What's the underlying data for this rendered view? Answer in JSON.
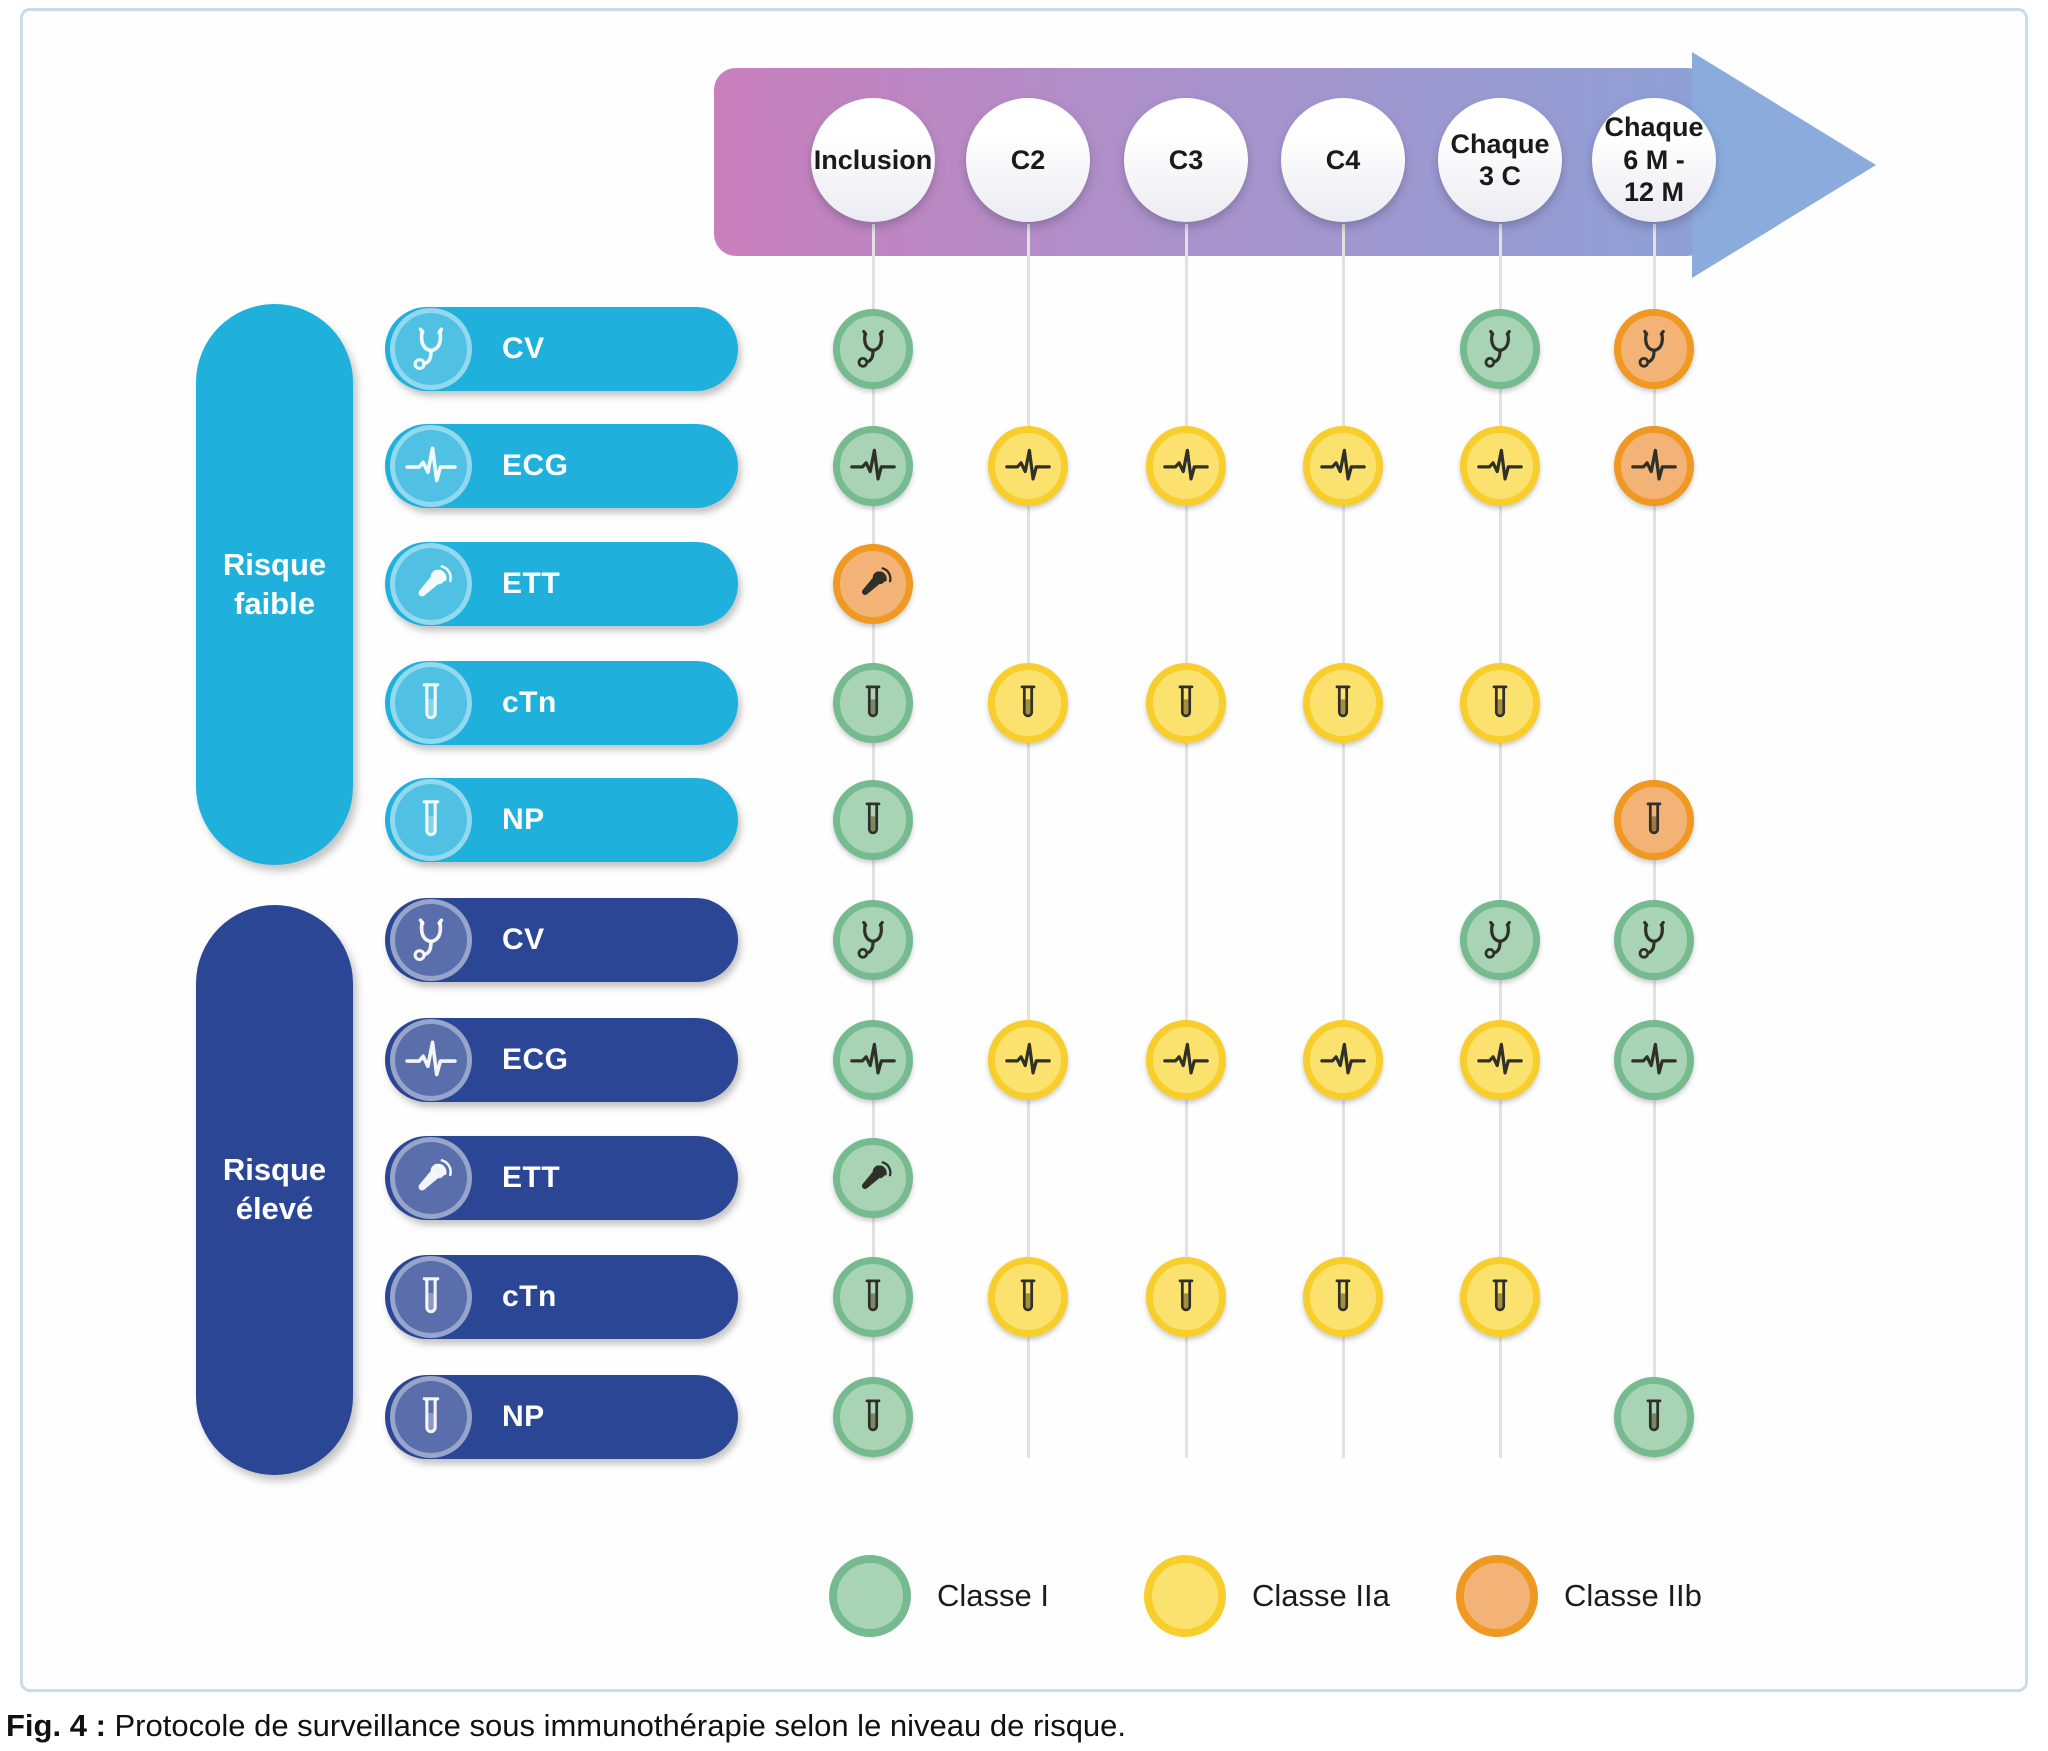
{
  "timeline": {
    "columns": [
      {
        "id": "inclusion",
        "label": "Inclusion"
      },
      {
        "id": "c2",
        "label": "C2"
      },
      {
        "id": "c3",
        "label": "C3"
      },
      {
        "id": "c4",
        "label": "C4"
      },
      {
        "id": "chaque-3c",
        "label": "Chaque\n3 C"
      },
      {
        "id": "chaque-6m-12m",
        "label": "Chaque\n6 M -\n12 M"
      }
    ],
    "arrow_gradient": [
      "#C97FBC",
      "#A893CC",
      "#8DA0D6"
    ],
    "arrow_head_color": "#8AABDC"
  },
  "risk_groups": [
    {
      "label": "Risque\nfaible",
      "color": "#1FB0DC",
      "rows": [
        {
          "label": "CV",
          "icon": "stethoscope",
          "cells": [
            "I",
            "",
            "",
            "",
            "I",
            "IIb"
          ]
        },
        {
          "label": "ECG",
          "icon": "ecg",
          "cells": [
            "I",
            "IIa",
            "IIa",
            "IIa",
            "IIa",
            "IIb"
          ]
        },
        {
          "label": "ETT",
          "icon": "ett",
          "cells": [
            "IIb",
            "",
            "",
            "",
            "",
            ""
          ]
        },
        {
          "label": "cTn",
          "icon": "tube",
          "cells": [
            "I",
            "IIa",
            "IIa",
            "IIa",
            "IIa",
            ""
          ]
        },
        {
          "label": "NP",
          "icon": "tube",
          "cells": [
            "I",
            "",
            "",
            "",
            "",
            "IIb"
          ]
        }
      ]
    },
    {
      "label": "Risque\nélevé",
      "color": "#2B4694",
      "rows": [
        {
          "label": "CV",
          "icon": "stethoscope",
          "cells": [
            "I",
            "",
            "",
            "",
            "I",
            "I"
          ]
        },
        {
          "label": "ECG",
          "icon": "ecg",
          "cells": [
            "I",
            "IIa",
            "IIa",
            "IIa",
            "IIa",
            "I"
          ]
        },
        {
          "label": "ETT",
          "icon": "ett",
          "cells": [
            "I",
            "",
            "",
            "",
            "",
            ""
          ]
        },
        {
          "label": "cTn",
          "icon": "tube",
          "cells": [
            "I",
            "IIa",
            "IIa",
            "IIa",
            "IIa",
            ""
          ]
        },
        {
          "label": "NP",
          "icon": "tube",
          "cells": [
            "I",
            "",
            "",
            "",
            "",
            "I"
          ]
        }
      ]
    }
  ],
  "classes": {
    "I": {
      "label": "Classe I",
      "fill": "#A8D4B5",
      "border": "#75BB8F"
    },
    "IIa": {
      "label": "Classe IIa",
      "fill": "#FBE26E",
      "border": "#F7CE2B"
    },
    "IIb": {
      "label": "Classe IIb",
      "fill": "#F3B377",
      "border": "#EF9822"
    }
  },
  "legend": [
    {
      "class": "I",
      "label": "Classe I"
    },
    {
      "class": "IIa",
      "label": "Classe IIa"
    },
    {
      "class": "IIb",
      "label": "Classe IIb"
    }
  ],
  "caption": {
    "label": "Fig. 4 :",
    "text": " Protocole de surveillance sous immunothérapie selon le niveau de risque."
  }
}
